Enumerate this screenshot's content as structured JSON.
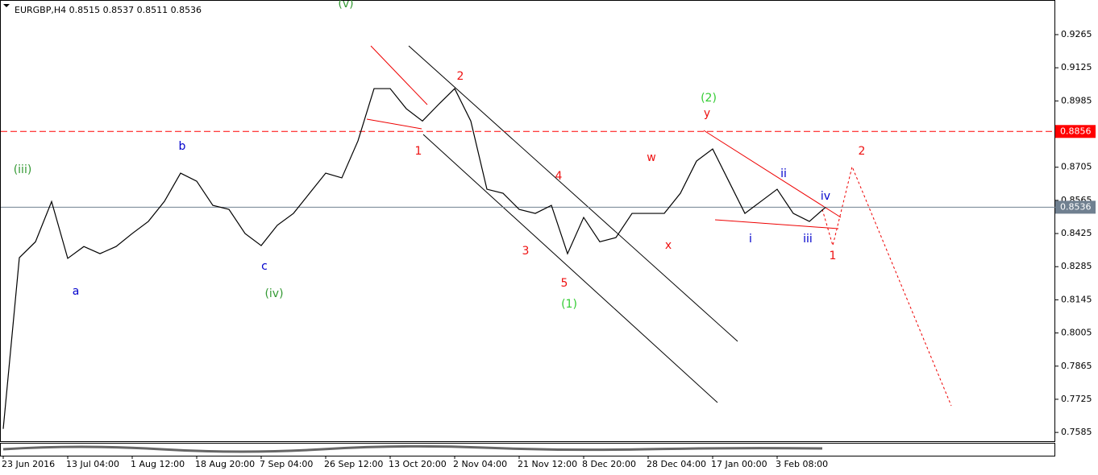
{
  "chart_data": {
    "type": "line",
    "title": "EURGBP,H4  0.8515 0.8537 0.8511 0.8536",
    "categories": [
      "23 Jun 2016",
      null,
      null,
      null,
      "13 Jul 04:00",
      null,
      null,
      null,
      "1 Aug 12:00",
      null,
      null,
      null,
      "18 Aug 20:00",
      null,
      null,
      null,
      "7 Sep 04:00",
      null,
      null,
      null,
      "26 Sep 12:00",
      null,
      null,
      null,
      "13 Oct 20:00",
      null,
      null,
      null,
      "2 Nov 04:00",
      null,
      null,
      null,
      "21 Nov 12:00",
      null,
      null,
      null,
      "8 Dec 20:00",
      null,
      null,
      null,
      "28 Dec 04:00",
      null,
      null,
      null,
      "17 Jan 00:00",
      null,
      null,
      null,
      "3 Feb 08:00",
      null,
      null,
      null
    ],
    "values": [
      0.76,
      0.8323,
      0.839,
      0.856,
      0.832,
      0.837,
      0.834,
      0.837,
      0.8425,
      0.8476,
      0.8561,
      0.868,
      0.8646,
      0.8544,
      0.8527,
      0.8425,
      0.8374,
      0.846,
      0.851,
      0.8595,
      0.868,
      0.866,
      0.8816,
      0.9037,
      0.9037,
      0.8952,
      0.89,
      0.897,
      0.9037,
      0.89,
      0.8612,
      0.8595,
      0.8527,
      0.851,
      0.8544,
      0.834,
      0.8493,
      0.839,
      0.8408,
      0.851,
      0.851,
      0.851,
      0.8595,
      0.8731,
      0.8782,
      0.8646,
      0.851,
      0.8561,
      0.8612,
      0.851,
      0.8476,
      0.8536
    ],
    "color": "#000000",
    "ylim": [
      0.7548,
      0.9401
    ],
    "yticks": [
      0.9265,
      0.9125,
      0.8985,
      0.8705,
      0.8565,
      0.8425,
      0.8285,
      0.8145,
      0.8005,
      0.7865,
      0.7725,
      0.7585
    ],
    "level_line": {
      "value": 0.8856,
      "color": "#ff0000"
    },
    "price_line": {
      "value": 0.8536,
      "color": "#708090"
    },
    "annotations": [
      {
        "text": "(v)",
        "color": "#339933"
      },
      {
        "text": "(iii)",
        "color": "#339933"
      },
      {
        "text": "b",
        "color": "#0000cc"
      },
      {
        "text": "a",
        "color": "#0000cc"
      },
      {
        "text": "c",
        "color": "#0000cc"
      },
      {
        "text": "(iv)",
        "color": "#339933"
      },
      {
        "text": "1",
        "color": "#ee1111"
      },
      {
        "text": "2",
        "color": "#ee1111"
      },
      {
        "text": "4",
        "color": "#ee1111"
      },
      {
        "text": "3",
        "color": "#ee1111"
      },
      {
        "text": "5",
        "color": "#ee1111"
      },
      {
        "text": "(1)",
        "color": "#33cc33"
      },
      {
        "text": "w",
        "color": "#ee1111"
      },
      {
        "text": "x",
        "color": "#ee1111"
      },
      {
        "text": "y",
        "color": "#ee1111"
      },
      {
        "text": "(2)",
        "color": "#33cc33"
      },
      {
        "text": "ii",
        "color": "#0000cc"
      },
      {
        "text": "i",
        "color": "#0000cc"
      },
      {
        "text": "iii",
        "color": "#0000cc"
      },
      {
        "text": "iv",
        "color": "#0000cc"
      },
      {
        "text": "1",
        "color": "#ee1111"
      },
      {
        "text": "2",
        "color": "#ee1111"
      }
    ]
  }
}
